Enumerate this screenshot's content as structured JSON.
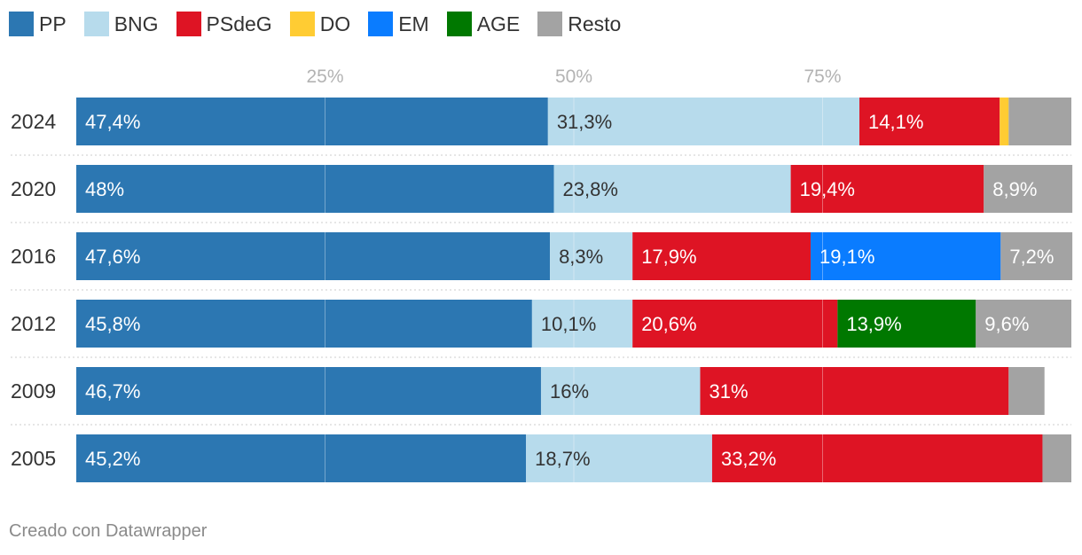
{
  "colors": {
    "PP": "#2c77b2",
    "BNG": "#b7dbec",
    "PSdeG": "#de1424",
    "DO": "#ffcc33",
    "EM": "#0a7cff",
    "AGE": "#007800",
    "Resto": "#a3a3a3"
  },
  "label_colors": {
    "PP": "#ffffff",
    "BNG": "#333333",
    "PSdeG": "#ffffff",
    "DO": "#333333",
    "EM": "#ffffff",
    "AGE": "#ffffff",
    "Resto": "#ffffff"
  },
  "footer": "Creado con Datawrapper",
  "chart_data": {
    "type": "bar",
    "orientation": "horizontal",
    "stacked": true,
    "categories": [
      "2024",
      "2020",
      "2016",
      "2012",
      "2009",
      "2005"
    ],
    "xlim": [
      0,
      100
    ],
    "ticks": [
      {
        "value": 25,
        "label": "25%"
      },
      {
        "value": 50,
        "label": "50%"
      },
      {
        "value": 75,
        "label": "75%"
      }
    ],
    "legend": [
      "PP",
      "BNG",
      "PSdeG",
      "DO",
      "EM",
      "AGE",
      "Resto"
    ],
    "series": [
      {
        "name": "PP",
        "values": [
          47.4,
          48,
          47.6,
          45.8,
          46.7,
          45.2
        ],
        "labels": [
          "47,4%",
          "48%",
          "47,6%",
          "45,8%",
          "46,7%",
          "45,2%"
        ]
      },
      {
        "name": "BNG",
        "values": [
          31.3,
          23.8,
          8.3,
          10.1,
          16,
          18.7
        ],
        "labels": [
          "31,3%",
          "23,8%",
          "8,3%",
          "10,1%",
          "16%",
          "18,7%"
        ]
      },
      {
        "name": "PSdeG",
        "values": [
          14.1,
          19.4,
          17.9,
          20.6,
          31,
          33.2
        ],
        "labels": [
          "14,1%",
          "19,4%",
          "17,9%",
          "20,6%",
          "31%",
          "33,2%"
        ]
      },
      {
        "name": "DO",
        "values": [
          0.9,
          0,
          0,
          0,
          0,
          0
        ],
        "labels": [
          "",
          "",
          "",
          "",
          "",
          ""
        ]
      },
      {
        "name": "EM",
        "values": [
          0,
          0,
          19.1,
          0,
          0,
          0
        ],
        "labels": [
          "",
          "",
          "19,1%",
          "",
          "",
          ""
        ]
      },
      {
        "name": "AGE",
        "values": [
          0,
          0,
          0,
          13.9,
          0,
          0
        ],
        "labels": [
          "",
          "",
          "",
          "13,9%",
          "",
          ""
        ]
      },
      {
        "name": "Resto",
        "values": [
          6.3,
          8.9,
          7.2,
          9.6,
          3.6,
          2.9
        ],
        "labels": [
          "",
          "8,9%",
          "7,2%",
          "9,6%",
          "",
          ""
        ]
      }
    ]
  }
}
